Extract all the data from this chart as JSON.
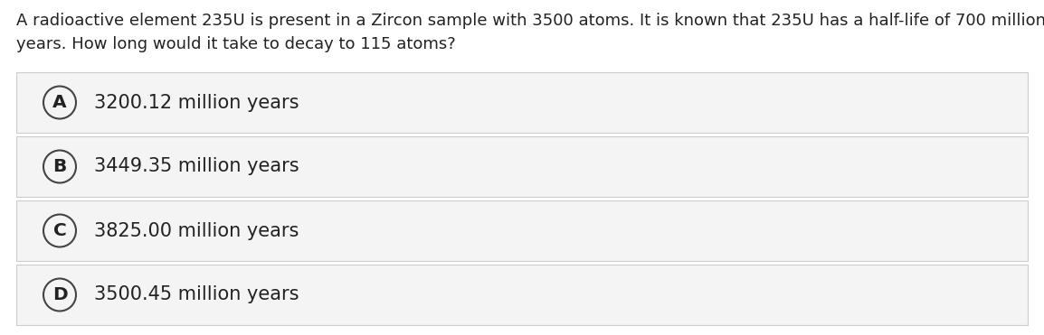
{
  "question_line1": "A radioactive element 235U is present in a Zircon sample with 3500 atoms. It is known that 235U has a half-life of 700 million",
  "question_line2": "years. How long would it take to decay to 115 atoms?",
  "options": [
    {
      "label": "A",
      "text": "3200.12 million years"
    },
    {
      "label": "B",
      "text": "3449.35 million years"
    },
    {
      "label": "C",
      "text": "3825.00 million years"
    },
    {
      "label": "D",
      "text": "3500.45 million years"
    }
  ],
  "bg_color": "#ffffff",
  "option_bg_color": "#f4f4f4",
  "option_border_color": "#cccccc",
  "text_color": "#222222",
  "circle_edge_color": "#444444",
  "question_fontsize": 13.0,
  "option_fontsize": 15.0,
  "label_fontsize": 14.5,
  "fig_width": 11.54,
  "fig_height": 3.71,
  "dpi": 100
}
